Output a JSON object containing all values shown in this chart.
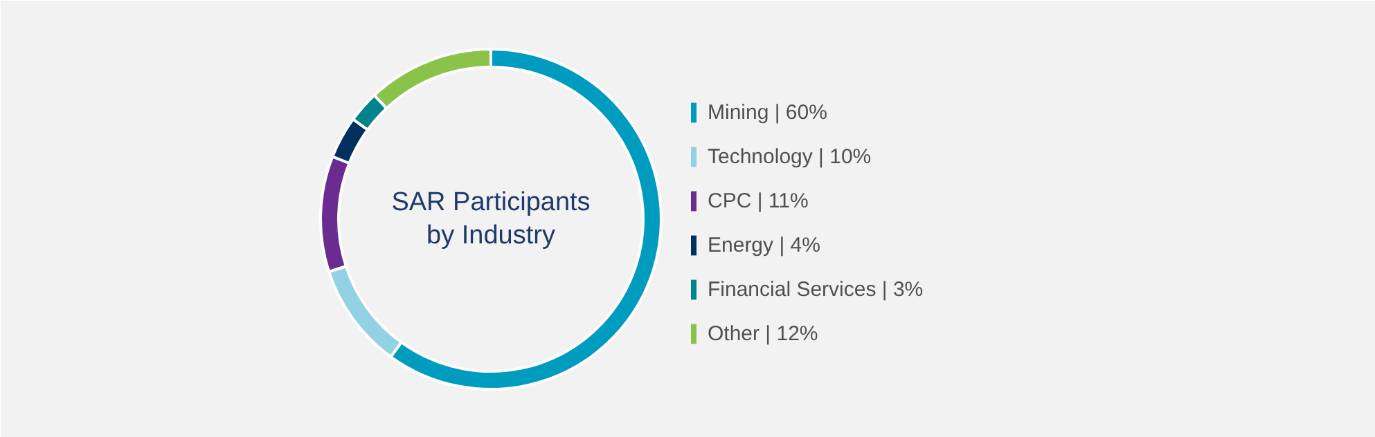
{
  "chart_data": {
    "type": "donut",
    "title": "SAR Participants\nby Industry",
    "categories": [
      "Mining | 60%",
      "Technology | 10%",
      "CPC | 11%",
      "Energy | 4%",
      "Financial Services | 3%",
      "Other | 12%"
    ],
    "values": [
      60,
      10,
      11,
      4,
      3,
      12
    ],
    "colors": [
      "#009cc0",
      "#93d1e4",
      "#6a2c91",
      "#00305e",
      "#00838a",
      "#8bc34a"
    ],
    "legend": "right"
  }
}
